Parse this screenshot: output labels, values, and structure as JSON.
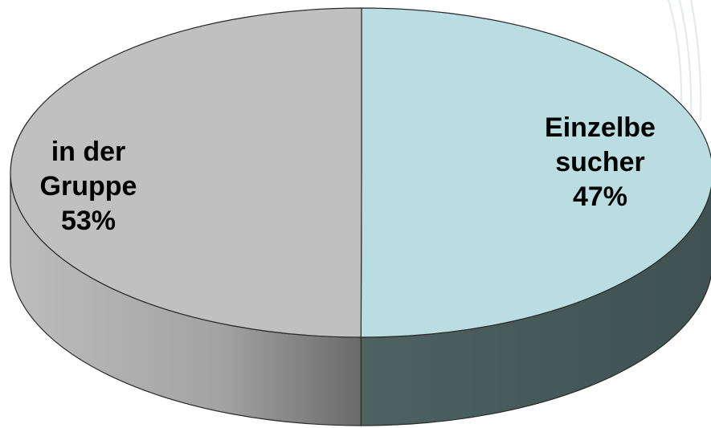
{
  "chart_data": {
    "type": "pie",
    "style": "3d",
    "legend": "none",
    "slices": [
      {
        "label_lines": [
          "Einzelbe",
          "sucher",
          "47%"
        ],
        "name": "Einzelbesucher",
        "value": 47,
        "top_color": "#b9dde1",
        "side_color": "#4a5c5c"
      },
      {
        "label_lines": [
          "in der",
          "Gruppe",
          "53%"
        ],
        "name": "in der Gruppe",
        "value": 53,
        "top_color": "#c0c0c0",
        "side_color": "#8f8f8f"
      }
    ]
  }
}
